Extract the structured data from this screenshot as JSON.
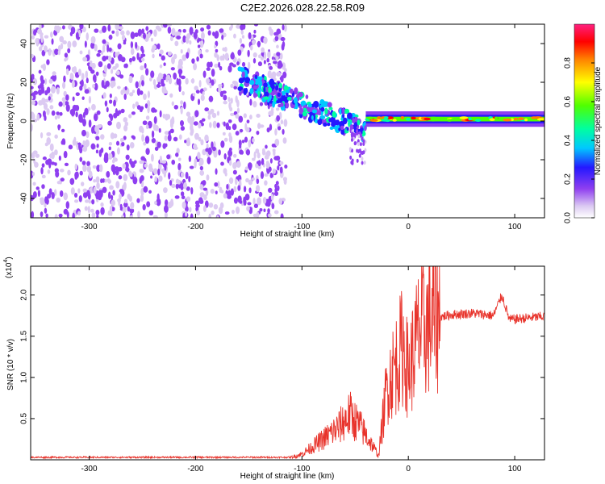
{
  "title": "C2E2.2026.028.22.58.R09",
  "chart_data": [
    {
      "type": "heatmap",
      "name": "spectrogram",
      "xlabel": "Height of straight line (km)",
      "ylabel": "Frequency (Hz)",
      "xlim": [
        -355,
        128
      ],
      "ylim": [
        -50,
        50
      ],
      "xticks": [
        -300,
        -200,
        -100,
        0,
        100
      ],
      "yticks": [
        -40,
        -20,
        0,
        20,
        40
      ],
      "colorbar": {
        "label": "Normalized spectral amplitude",
        "range": [
          0,
          1
        ],
        "ticks": [
          "0.0",
          "0.2",
          "0.4",
          "0.6",
          "0.8"
        ],
        "tick_values": [
          0,
          0.2,
          0.4,
          0.6,
          0.8
        ]
      },
      "regions": [
        {
          "desc": "noise",
          "x_range": [
            -355,
            -115
          ],
          "f_range": [
            -50,
            50
          ],
          "amplitude": 0.2
        },
        {
          "desc": "descending echo",
          "x_range": [
            -160,
            -40
          ],
          "f_start": 22,
          "f_end": -5,
          "amplitude": 0.3
        },
        {
          "desc": "tail",
          "x_range": [
            -55,
            -40
          ],
          "f_range": [
            -22,
            -5
          ],
          "amplitude": 0.15
        },
        {
          "desc": "stable echo",
          "x_range": [
            -40,
            128
          ],
          "f_center": 1,
          "f_halfwidth": 4,
          "amplitude": 0.6,
          "peak_amplitude": 0.95
        }
      ]
    },
    {
      "type": "line",
      "name": "snr",
      "xlabel": "Height of straight line (km)",
      "ylabel": "SNR (10 * v/v)",
      "multiplier_label": "(x10",
      "multiplier_exp": "4",
      "xlim": [
        -355,
        128
      ],
      "ylim": [
        0,
        2.35
      ],
      "xticks": [
        -300,
        -200,
        -100,
        0,
        100
      ],
      "yticks": [
        0.5,
        1.0,
        1.5,
        2.0
      ],
      "ytick_labels": [
        "0.5",
        "1.0",
        "1.5",
        "2.0"
      ],
      "series": [
        {
          "name": "SNR",
          "color": "#e8332b",
          "x": [
            -355,
            -110,
            -100,
            -80,
            -65,
            -55,
            -45,
            -35,
            -28,
            -20,
            -12,
            -5,
            0,
            10,
            25,
            40,
            60,
            80,
            88,
            95,
            110,
            128
          ],
          "y": [
            0.03,
            0.03,
            0.07,
            0.25,
            0.4,
            0.55,
            0.4,
            0.2,
            0.05,
            0.9,
            1.15,
            1.4,
            1.05,
            1.55,
            1.72,
            1.76,
            1.78,
            1.75,
            2.0,
            1.7,
            1.72,
            1.74
          ]
        }
      ]
    }
  ],
  "colors": {
    "line": "#e8332b",
    "axis": "#000000"
  }
}
